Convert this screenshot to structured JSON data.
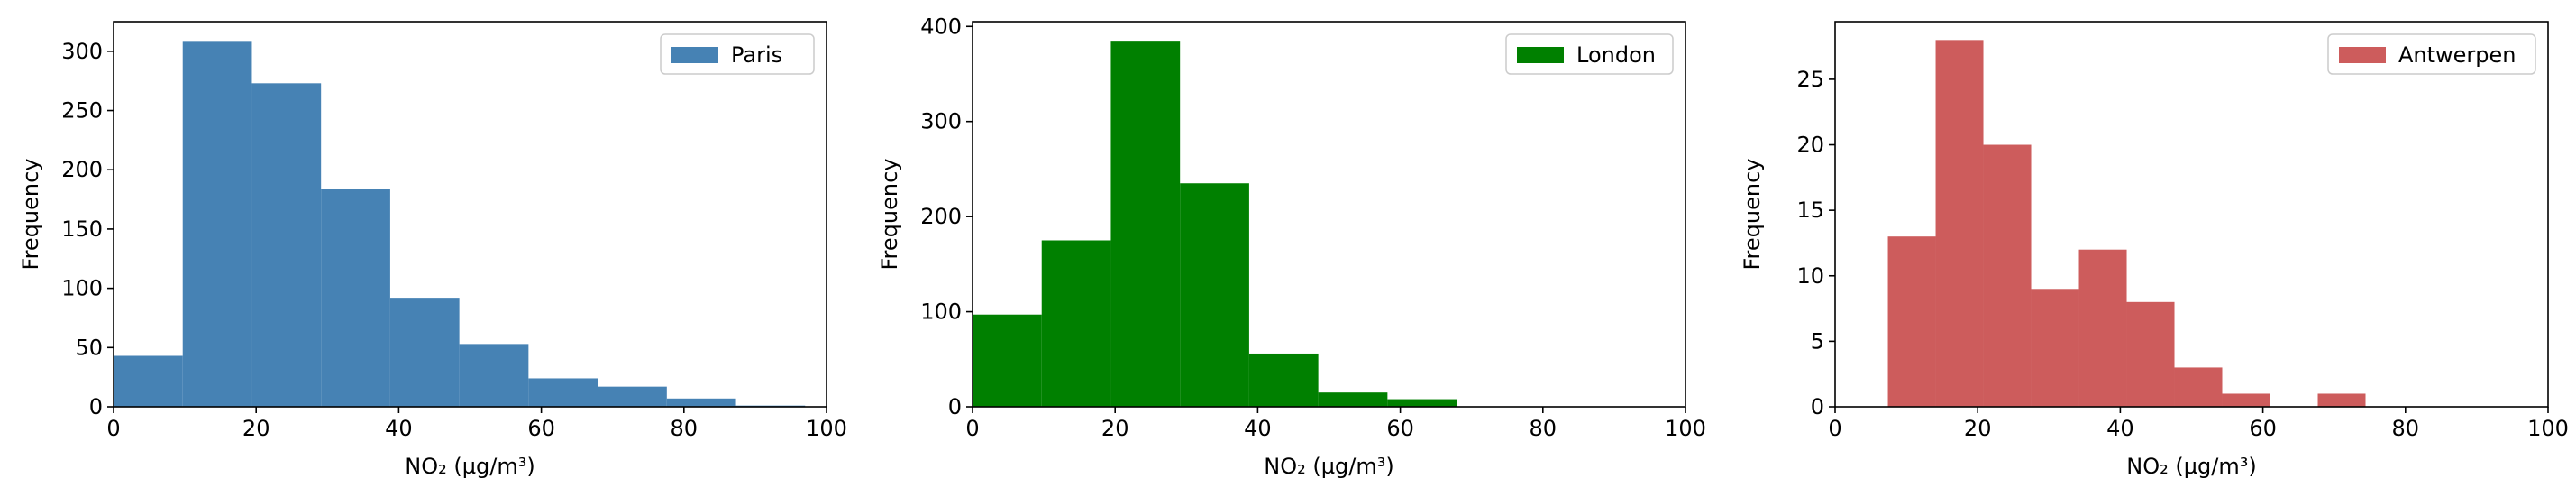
{
  "chart_data": [
    {
      "type": "bar",
      "xlabel": "NO₂ (µg/m³)",
      "ylabel": "Frequency",
      "xlim": [
        0,
        100
      ],
      "ylim": [
        0,
        325
      ],
      "x_ticks": [
        0,
        20,
        40,
        60,
        80,
        100
      ],
      "y_ticks": [
        0,
        50,
        100,
        150,
        200,
        250,
        300
      ],
      "legend_position": "top-right",
      "series": [
        {
          "name": "Paris",
          "color": "#4682b4",
          "bin_edges": [
            0,
            9.7,
            19.4,
            29.1,
            38.8,
            48.5,
            58.2,
            67.9,
            77.6,
            87.3,
            97.0
          ],
          "values": [
            43,
            308,
            273,
            184,
            92,
            53,
            24,
            17,
            7,
            1
          ]
        }
      ]
    },
    {
      "type": "bar",
      "xlabel": "NO₂ (µg/m³)",
      "ylabel": "Frequency",
      "xlim": [
        0,
        100
      ],
      "ylim": [
        0,
        405
      ],
      "x_ticks": [
        0,
        20,
        40,
        60,
        80,
        100
      ],
      "y_ticks": [
        0,
        100,
        200,
        300,
        400
      ],
      "legend_position": "top-right",
      "series": [
        {
          "name": "London",
          "color": "#008000",
          "bin_edges": [
            0,
            9.7,
            19.4,
            29.1,
            38.8,
            48.5,
            58.2,
            67.9
          ],
          "values": [
            97,
            175,
            384,
            235,
            56,
            15,
            8
          ]
        }
      ]
    },
    {
      "type": "bar",
      "xlabel": "NO₂ (µg/m³)",
      "ylabel": "Frequency",
      "xlim": [
        0,
        100
      ],
      "ylim": [
        0,
        29.4
      ],
      "x_ticks": [
        0,
        20,
        40,
        60,
        80,
        100
      ],
      "y_ticks": [
        0,
        5,
        10,
        15,
        20,
        25
      ],
      "legend_position": "top-right",
      "series": [
        {
          "name": "Antwerpen",
          "color": "#cd5c5c",
          "bin_edges": [
            7.4,
            14.1,
            20.8,
            27.5,
            34.2,
            40.9,
            47.6,
            54.3,
            61.0,
            67.7,
            74.4
          ],
          "values": [
            13,
            28,
            20,
            9,
            12,
            8,
            3,
            1,
            0,
            1
          ]
        }
      ]
    }
  ]
}
